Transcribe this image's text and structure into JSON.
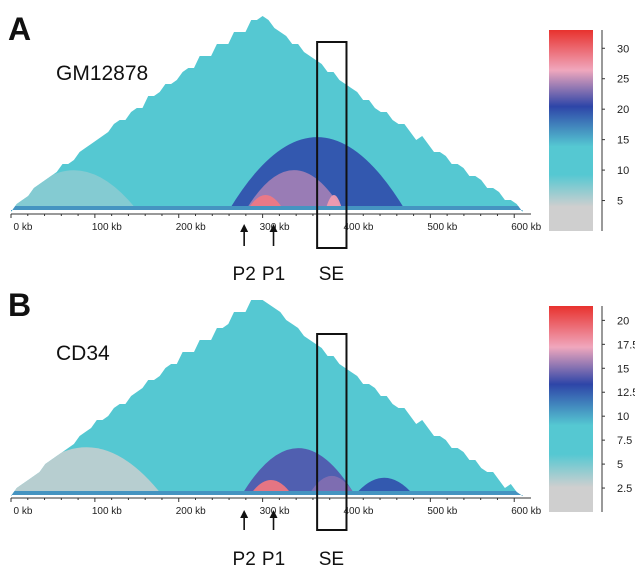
{
  "colors": {
    "scale_grey": "#cfcfcf",
    "scale_cyan": "#55c8d2",
    "scale_blue": "#2e45a8",
    "scale_pink": "#f0a7bd",
    "scale_red": "#e8322e",
    "box_stroke": "#111111",
    "axis": "#333333"
  },
  "chart_data": [
    {
      "type": "heatmap",
      "panel_label": "A",
      "sample_label": "GM12878",
      "x_tick_labels": [
        "0 kb",
        "100 kb",
        "200 kb",
        "300 kb",
        "400 kb",
        "500 kb",
        "600 kb"
      ],
      "x_ticks_kb": [
        0,
        100,
        200,
        300,
        400,
        500,
        600
      ],
      "xlim_kb": [
        0,
        620
      ],
      "colorbar": {
        "ticks": [
          5,
          10,
          15,
          20,
          25,
          30
        ],
        "tick_labels": [
          "5",
          "10",
          "15",
          "20",
          "25",
          "30"
        ],
        "range": [
          0,
          33
        ]
      },
      "annotations": [
        {
          "label": "P2",
          "position_kb": 278
        },
        {
          "label": "P1",
          "position_kb": 313
        },
        {
          "label": "SE",
          "position_kb": 382
        }
      ],
      "highlight_region_kb": [
        365,
        400
      ],
      "domains": [
        {
          "name": "background",
          "start_kb": 0,
          "end_kb": 610,
          "value": 12
        },
        {
          "name": "left-flank",
          "start_kb": 0,
          "end_kb": 150,
          "value": 7
        },
        {
          "name": "central-domain",
          "start_kb": 260,
          "end_kb": 470,
          "value": 20
        },
        {
          "name": "core",
          "start_kb": 280,
          "end_kb": 395,
          "value": 24
        },
        {
          "name": "promoter-hotspot",
          "start_kb": 282,
          "end_kb": 325,
          "value": 29
        },
        {
          "name": "enhancer-hotspot",
          "start_kb": 375,
          "end_kb": 395,
          "value": 27
        }
      ]
    },
    {
      "type": "heatmap",
      "panel_label": "B",
      "sample_label": "CD34",
      "x_tick_labels": [
        "0 kb",
        "100 kb",
        "200 kb",
        "300 kb",
        "400 kb",
        "500 kb",
        "600 kb"
      ],
      "x_ticks_kb": [
        0,
        100,
        200,
        300,
        400,
        500,
        600
      ],
      "xlim_kb": [
        0,
        620
      ],
      "colorbar": {
        "ticks": [
          2.5,
          5,
          7.5,
          10,
          12.5,
          15,
          17.5,
          20
        ],
        "tick_labels": [
          "2.5",
          "5",
          "7.5",
          "10",
          "12.5",
          "15",
          "17.5",
          "20"
        ],
        "range": [
          0,
          21.5
        ]
      },
      "annotations": [
        {
          "label": "P2",
          "position_kb": 278
        },
        {
          "label": "P1",
          "position_kb": 313
        },
        {
          "label": "SE",
          "position_kb": 382
        }
      ],
      "highlight_region_kb": [
        365,
        400
      ],
      "domains": [
        {
          "name": "background",
          "start_kb": 0,
          "end_kb": 610,
          "value": 9
        },
        {
          "name": "left-flank",
          "start_kb": 0,
          "end_kb": 180,
          "value": 3
        },
        {
          "name": "central-domain",
          "start_kb": 275,
          "end_kb": 410,
          "value": 14
        },
        {
          "name": "enhancer-domain",
          "start_kb": 355,
          "end_kb": 410,
          "value": 15
        },
        {
          "name": "promoter-hotspot",
          "start_kb": 285,
          "end_kb": 335,
          "value": 19
        },
        {
          "name": "right-spots",
          "start_kb": 410,
          "end_kb": 480,
          "value": 13
        }
      ]
    }
  ]
}
